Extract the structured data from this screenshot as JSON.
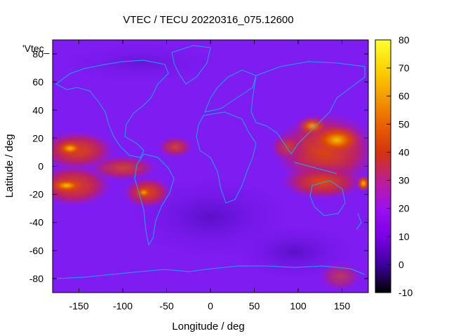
{
  "chart_data": {
    "type": "heatmap",
    "title": "VTEC / TECU 20220316_075.12600",
    "series_label": "'Vtec_",
    "xlabel": "Longitude / deg",
    "ylabel": "Latitude / deg",
    "xlim": [
      -180,
      180
    ],
    "ylim": [
      -90,
      90
    ],
    "xticks": [
      -150,
      -100,
      -50,
      0,
      50,
      100,
      150
    ],
    "yticks": [
      -80,
      -60,
      -40,
      -20,
      0,
      20,
      40,
      60,
      80
    ],
    "colorbar": {
      "range": [
        -10,
        80
      ],
      "ticks": [
        -10,
        0,
        10,
        20,
        30,
        40,
        50,
        60,
        70,
        80
      ],
      "colors": [
        "#000000",
        "#3d009a",
        "#7a00e6",
        "#9d1ef0",
        "#c0207a",
        "#d83a10",
        "#eb6a00",
        "#f5a800",
        "#ffe000",
        "#ffff30"
      ]
    },
    "grid": false,
    "coastline_color": "#1aa7ff"
  }
}
